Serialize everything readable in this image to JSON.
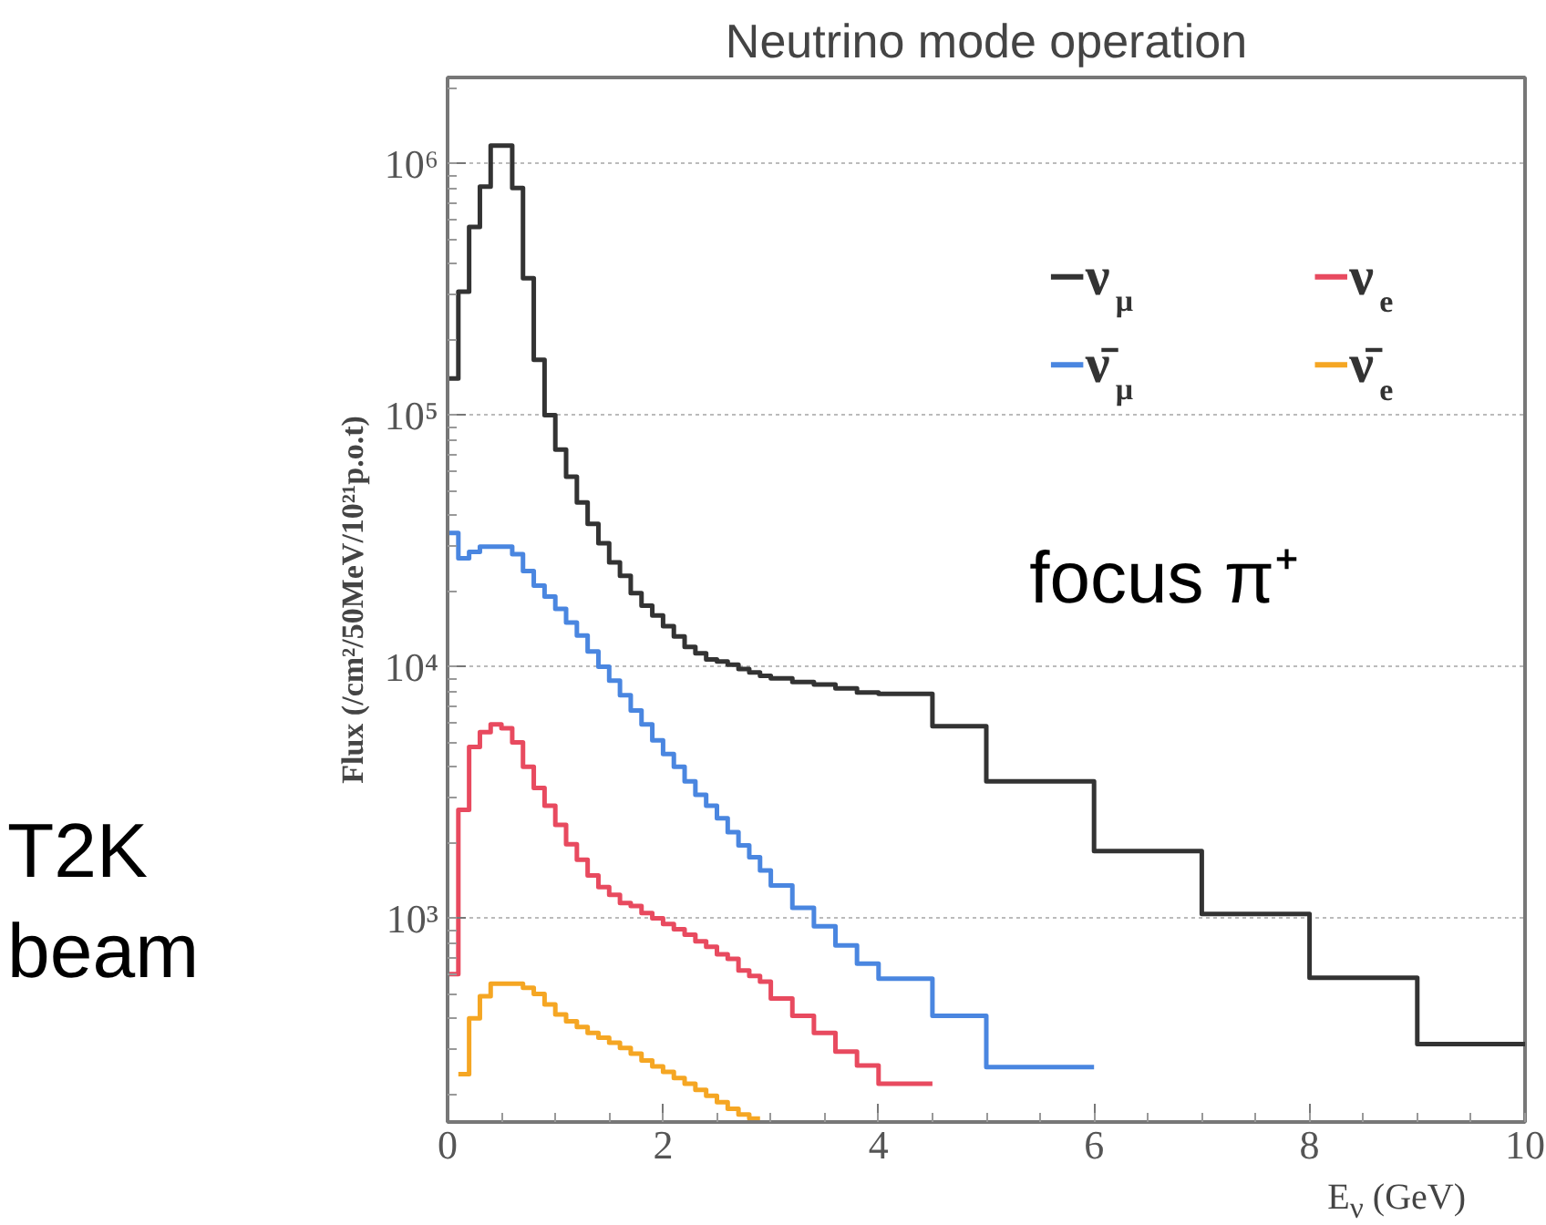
{
  "chart_data": {
    "type": "step",
    "title": "Neutrino mode operation",
    "xlabel": "E$_{ν}$ (GeV)",
    "ylabel": "Flux (/cm²/50MeV/10²¹p.o.t)",
    "xlim": [
      0,
      10
    ],
    "xticks": [
      0,
      2,
      4,
      6,
      8,
      10
    ],
    "ylim": [
      155,
      2200000
    ],
    "yticks": [
      {
        "value": 1000,
        "label": "10³"
      },
      {
        "value": 10000,
        "label": "10⁴"
      },
      {
        "value": 100000,
        "label": "10⁵"
      },
      {
        "value": 1000000,
        "label": "10⁶"
      }
    ],
    "log": "y",
    "grid": "y",
    "legend": "top right",
    "annotations": [
      "focus π⁺",
      "T2K beam"
    ],
    "series": [
      {
        "name": "ν$_{μ}$",
        "color": "#333333",
        "x": [
          0,
          0.1,
          0.2,
          0.3,
          0.4,
          0.5,
          0.6,
          0.7,
          0.8,
          0.9,
          1.0,
          1.1,
          1.2,
          1.3,
          1.4,
          1.5,
          1.6,
          1.7,
          1.8,
          1.9,
          2.0,
          2.1,
          2.2,
          2.3,
          2.4,
          2.5,
          2.6,
          2.7,
          2.8,
          2.9,
          3.0,
          3.2,
          3.4,
          3.6,
          3.8,
          4,
          4.5,
          5,
          6,
          7,
          8,
          9,
          10
        ],
        "values": [
          140000,
          310000,
          560000,
          810000,
          1180000,
          1180000,
          800000,
          350000,
          166000,
          100000,
          73000,
          57000,
          45000,
          37000,
          31000,
          26000,
          23000,
          19600,
          17500,
          16000,
          14500,
          13200,
          12000,
          11300,
          10700,
          10500,
          10200,
          9800,
          9500,
          9200,
          9000,
          8700,
          8500,
          8200,
          7900,
          7800,
          5800,
          3500,
          1850,
          1040,
          580,
          316,
          316
        ]
      },
      {
        "name": "ν̄$_{μ}$",
        "color": "#4a86e0",
        "x": [
          0,
          0.1,
          0.2,
          0.3,
          0.4,
          0.5,
          0.6,
          0.7,
          0.8,
          0.9,
          1.0,
          1.1,
          1.2,
          1.3,
          1.4,
          1.5,
          1.6,
          1.7,
          1.8,
          1.9,
          2.0,
          2.1,
          2.2,
          2.3,
          2.4,
          2.5,
          2.6,
          2.7,
          2.8,
          2.9,
          3.0,
          3.2,
          3.4,
          3.6,
          3.8,
          4,
          4.5,
          5,
          6
        ],
        "values": [
          34000,
          27000,
          28600,
          30000,
          30000,
          30000,
          28000,
          24000,
          21000,
          19000,
          17000,
          15000,
          13300,
          11500,
          10000,
          8800,
          7700,
          6700,
          5900,
          5100,
          4500,
          4000,
          3500,
          3100,
          2800,
          2500,
          2200,
          1950,
          1750,
          1550,
          1350,
          1100,
          930,
          780,
          660,
          575,
          410,
          256,
          256
        ]
      },
      {
        "name": "ν$_{e}$",
        "color": "#e84a5f",
        "x": [
          0,
          0.1,
          0.2,
          0.3,
          0.4,
          0.5,
          0.6,
          0.7,
          0.8,
          0.9,
          1.0,
          1.1,
          1.2,
          1.3,
          1.4,
          1.5,
          1.6,
          1.7,
          1.8,
          1.9,
          2.0,
          2.1,
          2.2,
          2.3,
          2.4,
          2.5,
          2.6,
          2.7,
          2.8,
          2.9,
          3.0,
          3.2,
          3.4,
          3.6,
          3.8,
          4,
          4.5
        ],
        "values": [
          600,
          2700,
          4800,
          5500,
          5900,
          5700,
          5000,
          4000,
          3300,
          2800,
          2350,
          1970,
          1710,
          1480,
          1330,
          1240,
          1150,
          1120,
          1050,
          1000,
          950,
          905,
          860,
          810,
          770,
          720,
          690,
          620,
          590,
          560,
          480,
          410,
          350,
          295,
          260,
          220,
          220
        ]
      },
      {
        "name": "ν̄$_{e}$",
        "color": "#f5a623",
        "x": [
          0.1,
          0.2,
          0.3,
          0.4,
          0.5,
          0.6,
          0.7,
          0.8,
          0.9,
          1.0,
          1.1,
          1.2,
          1.3,
          1.4,
          1.5,
          1.6,
          1.7,
          1.8,
          1.9,
          2.0,
          2.1,
          2.2,
          2.3,
          2.4,
          2.5,
          2.6,
          2.7,
          2.8,
          2.9
        ],
        "values": [
          240,
          400,
          490,
          550,
          550,
          550,
          530,
          500,
          455,
          415,
          390,
          370,
          350,
          335,
          320,
          305,
          290,
          272,
          258,
          245,
          232,
          220,
          208,
          197,
          186,
          175,
          166,
          160,
          160
        ]
      }
    ]
  }
}
